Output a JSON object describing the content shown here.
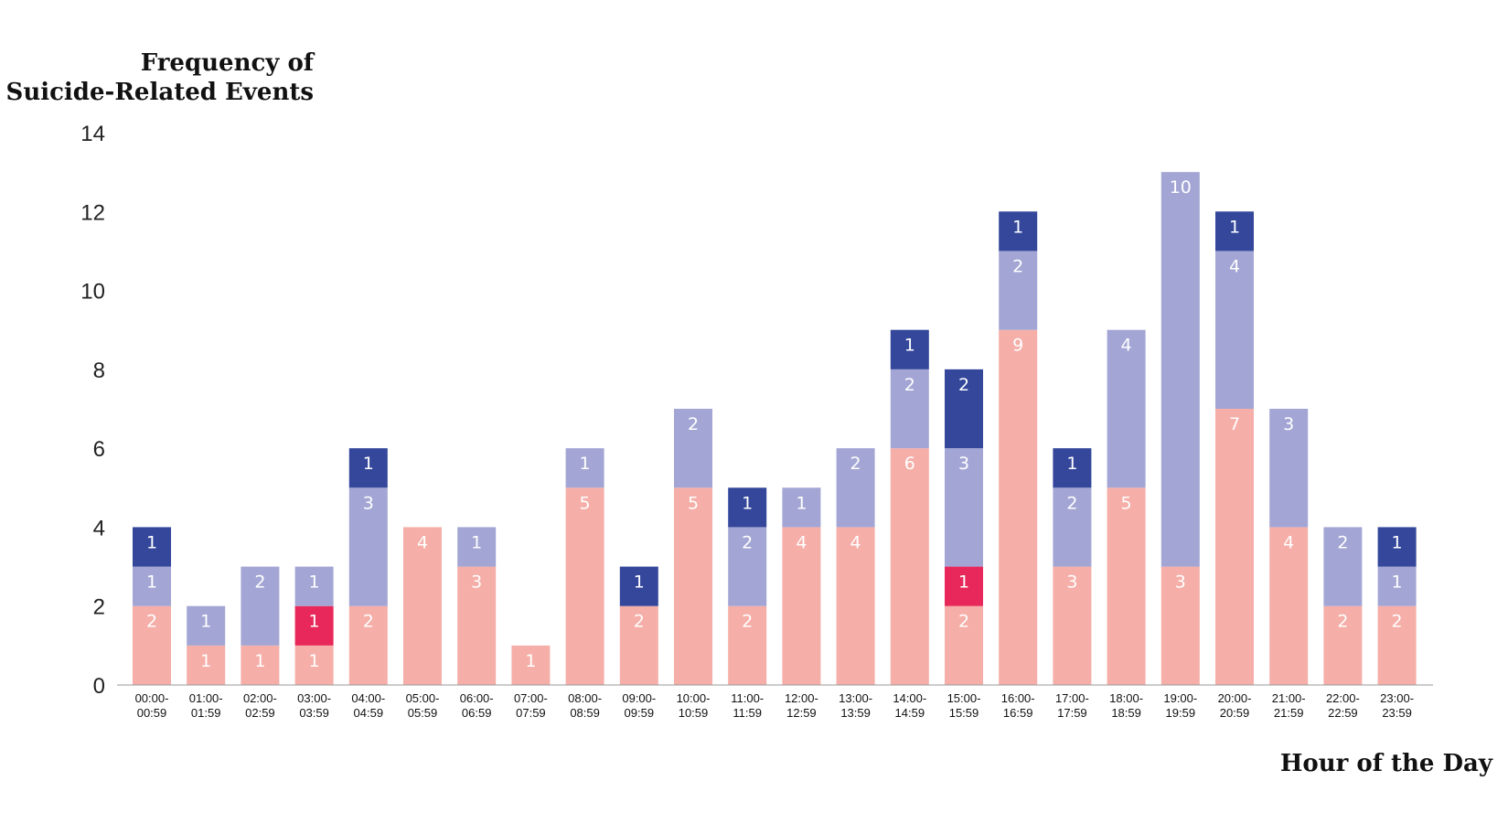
{
  "chart_data": {
    "type": "bar",
    "stacked": true,
    "ylabel": "Frequency of Suicide-Related Events",
    "ylabel_lines": [
      "Frequency of",
      "Suicide-Related Events"
    ],
    "xlabel": "Hour of the Day",
    "ylim": [
      0,
      14
    ],
    "yticks": [
      0,
      2,
      4,
      6,
      8,
      10,
      12,
      14
    ],
    "grid": false,
    "categories": [
      "00:00-00:59",
      "01:00-01:59",
      "02:00-02:59",
      "03:00-03:59",
      "04:00-04:59",
      "05:00-05:59",
      "06:00-06:59",
      "07:00-07:59",
      "08:00-08:59",
      "09:00-09:59",
      "10:00-10:59",
      "11:00-11:59",
      "12:00-12:59",
      "13:00-13:59",
      "14:00-14:59",
      "15:00-15:59",
      "16:00-16:59",
      "17:00-17:59",
      "18:00-18:59",
      "19:00-19:59",
      "20:00-20:59",
      "21:00-21:59",
      "22:00-22:59",
      "23:00-23:59"
    ],
    "tick_lines": [
      [
        "00:00-",
        "00:59"
      ],
      [
        "01:00-",
        "01:59"
      ],
      [
        "02:00-",
        "02:59"
      ],
      [
        "03:00-",
        "03:59"
      ],
      [
        "04:00-",
        "04:59"
      ],
      [
        "05:00-",
        "05:59"
      ],
      [
        "06:00-",
        "06:59"
      ],
      [
        "07:00-",
        "07:59"
      ],
      [
        "08:00-",
        "08:59"
      ],
      [
        "09:00-",
        "09:59"
      ],
      [
        "10:00-",
        "10:59"
      ],
      [
        "11:00-",
        "11:59"
      ],
      [
        "12:00-",
        "12:59"
      ],
      [
        "13:00-",
        "13:59"
      ],
      [
        "14:00-",
        "14:59"
      ],
      [
        "15:00-",
        "15:59"
      ],
      [
        "16:00-",
        "16:59"
      ],
      [
        "17:00-",
        "17:59"
      ],
      [
        "18:00-",
        "18:59"
      ],
      [
        "19:00-",
        "19:59"
      ],
      [
        "20:00-",
        "20:59"
      ],
      [
        "21:00-",
        "21:59"
      ],
      [
        "22:00-",
        "22:59"
      ],
      [
        "23:00-",
        "23:59"
      ]
    ],
    "series": [
      {
        "color": "#f5aea8",
        "values": [
          2,
          1,
          1,
          1,
          2,
          4,
          3,
          1,
          5,
          2,
          5,
          2,
          4,
          4,
          6,
          2,
          9,
          3,
          5,
          3,
          7,
          4,
          2,
          2
        ]
      },
      {
        "color": "#e8285a",
        "values": [
          0,
          0,
          0,
          1,
          0,
          0,
          0,
          0,
          0,
          0,
          0,
          0,
          0,
          0,
          0,
          1,
          0,
          0,
          0,
          0,
          0,
          0,
          0,
          0
        ]
      },
      {
        "color": "#a3a6d4",
        "values": [
          1,
          1,
          2,
          1,
          3,
          0,
          1,
          0,
          1,
          0,
          2,
          2,
          1,
          2,
          2,
          3,
          2,
          2,
          4,
          10,
          4,
          3,
          2,
          1
        ]
      },
      {
        "color": "#34479b",
        "values": [
          1,
          0,
          0,
          0,
          1,
          0,
          0,
          0,
          0,
          1,
          0,
          1,
          0,
          0,
          1,
          2,
          1,
          1,
          0,
          0,
          1,
          0,
          0,
          1
        ]
      }
    ]
  }
}
